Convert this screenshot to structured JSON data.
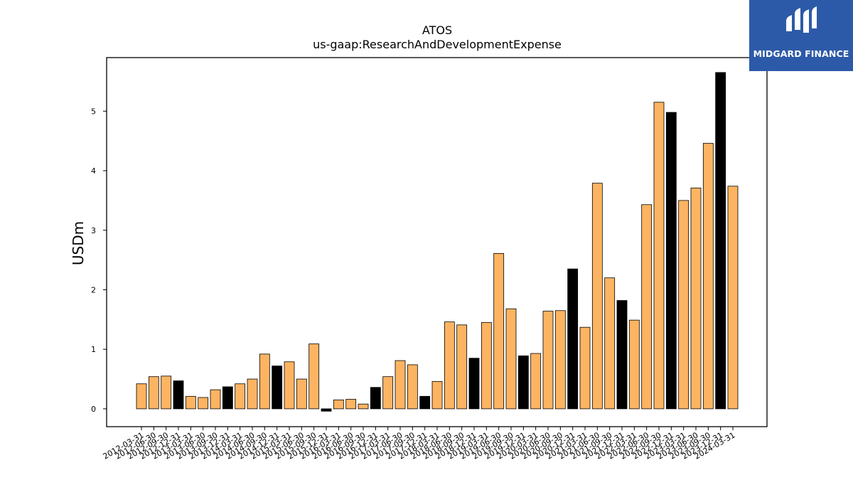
{
  "chart_data": {
    "type": "bar",
    "title": "ATOS",
    "subtitle": "us-gaap:ResearchAndDevelopmentExpense",
    "xlabel": "",
    "ylabel": "USDm",
    "ylim": [
      -0.3,
      5.9
    ],
    "yticks": [
      0,
      1,
      2,
      3,
      4,
      5
    ],
    "grid": false,
    "colors": {
      "quarter": "#fdb462",
      "fourth_quarter": "#000000",
      "edge": "#000000"
    },
    "categories": [
      "2012-03-31",
      "2012-06-30",
      "2012-09-30",
      "2012-12-31",
      "2013-03-31",
      "2013-06-30",
      "2013-09-30",
      "2013-12-31",
      "2014-03-31",
      "2014-06-30",
      "2014-09-30",
      "2014-12-31",
      "2015-03-31",
      "2015-06-30",
      "2015-09-30",
      "2015-12-31",
      "2016-03-31",
      "2016-06-30",
      "2016-09-30",
      "2016-12-31",
      "2017-03-31",
      "2017-06-30",
      "2017-09-30",
      "2017-12-31",
      "2018-03-31",
      "2018-06-30",
      "2018-09-30",
      "2018-12-31",
      "2019-03-31",
      "2019-06-30",
      "2019-09-30",
      "2019-12-31",
      "2020-03-31",
      "2020-06-30",
      "2020-09-30",
      "2020-12-31",
      "2021-03-31",
      "2021-06-30",
      "2021-09-30",
      "2021-12-31",
      "2022-03-31",
      "2022-06-30",
      "2022-09-30",
      "2022-12-31",
      "2023-03-31",
      "2023-06-30",
      "2023-09-30",
      "2023-12-31",
      "2024-03-31"
    ],
    "values": [
      0.42,
      0.54,
      0.55,
      0.47,
      0.21,
      0.19,
      0.32,
      0.37,
      0.42,
      0.5,
      0.92,
      0.72,
      0.79,
      0.5,
      1.09,
      -0.04,
      0.15,
      0.16,
      0.08,
      0.36,
      0.54,
      0.81,
      0.74,
      0.21,
      0.46,
      1.46,
      1.41,
      0.85,
      1.45,
      2.61,
      1.68,
      0.89,
      0.93,
      1.64,
      1.65,
      2.35,
      1.37,
      3.79,
      2.2,
      1.82,
      1.49,
      3.43,
      5.15,
      4.98,
      3.5,
      3.71,
      4.46,
      5.65,
      3.74
    ]
  },
  "watermark": {
    "brand": "MIDGARD FINANCE",
    "color": "#2d5aa8"
  }
}
